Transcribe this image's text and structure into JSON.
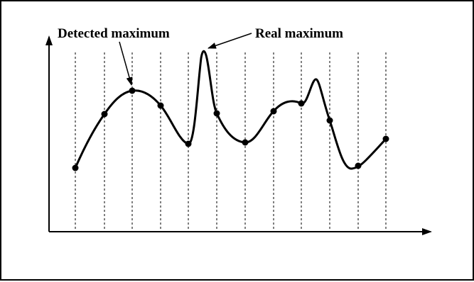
{
  "annotations": {
    "detected_label": "Detected maximum",
    "real_label": "Real maximum"
  },
  "colors": {
    "stroke": "#000000",
    "background": "#ffffff"
  }
}
